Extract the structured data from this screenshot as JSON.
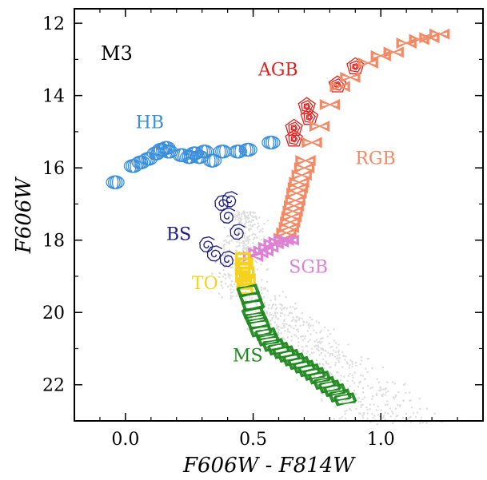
{
  "chart_data": {
    "type": "scatter",
    "title": "",
    "cluster_label": "M3",
    "xlabel": "F606W - F814W",
    "ylabel": "F606W",
    "xlim": [
      -0.2,
      1.4
    ],
    "ylim": [
      23.0,
      11.6
    ],
    "y_inverted": true,
    "grid": false,
    "xticks": [
      0.0,
      0.5,
      1.0
    ],
    "xtick_labels": [
      "0.0",
      "0.5",
      "1.0"
    ],
    "yticks": [
      12,
      14,
      16,
      18,
      20,
      22
    ],
    "ytick_labels": [
      "12",
      "14",
      "16",
      "18",
      "20",
      "22"
    ],
    "background_stars_color": "#dcdcdc",
    "series": [
      {
        "name": "HB",
        "color": "#3a8fdc",
        "marker": "ellipse-stack",
        "label_pos": [
          0.04,
          14.9
        ],
        "points": [
          [
            -0.04,
            16.4
          ],
          [
            0.03,
            15.95
          ],
          [
            0.06,
            15.85
          ],
          [
            0.09,
            15.75
          ],
          [
            0.12,
            15.6
          ],
          [
            0.14,
            15.5
          ],
          [
            0.16,
            15.45
          ],
          [
            0.17,
            15.55
          ],
          [
            0.22,
            15.65
          ],
          [
            0.25,
            15.7
          ],
          [
            0.27,
            15.6
          ],
          [
            0.29,
            15.7
          ],
          [
            0.31,
            15.55
          ],
          [
            0.34,
            15.8
          ],
          [
            0.38,
            15.55
          ],
          [
            0.44,
            15.55
          ],
          [
            0.48,
            15.5
          ],
          [
            0.57,
            15.3
          ]
        ]
      },
      {
        "name": "AGB",
        "color": "#e0201c",
        "marker": "pentagon-spiral",
        "label_pos": [
          0.52,
          13.45
        ],
        "points": [
          [
            0.66,
            14.9
          ],
          [
            0.66,
            15.2
          ],
          [
            0.71,
            14.3
          ],
          [
            0.72,
            14.6
          ],
          [
            0.83,
            13.7
          ],
          [
            0.9,
            13.2
          ]
        ]
      },
      {
        "name": "RGB",
        "color": "#f28a66",
        "marker": "bowtie",
        "label_pos": [
          0.9,
          15.9
        ],
        "points": [
          [
            0.62,
            17.95
          ],
          [
            0.63,
            17.8
          ],
          [
            0.64,
            17.65
          ],
          [
            0.645,
            17.5
          ],
          [
            0.65,
            17.35
          ],
          [
            0.655,
            17.2
          ],
          [
            0.66,
            17.05
          ],
          [
            0.665,
            16.9
          ],
          [
            0.67,
            16.7
          ],
          [
            0.675,
            16.55
          ],
          [
            0.68,
            16.4
          ],
          [
            0.69,
            16.2
          ],
          [
            0.7,
            16.0
          ],
          [
            0.705,
            15.8
          ],
          [
            0.73,
            15.3
          ],
          [
            0.76,
            14.85
          ],
          [
            0.8,
            14.25
          ],
          [
            0.84,
            13.75
          ],
          [
            0.88,
            13.5
          ],
          [
            0.95,
            13.1
          ],
          [
            1.0,
            12.9
          ],
          [
            1.05,
            12.8
          ],
          [
            1.1,
            12.55
          ],
          [
            1.15,
            12.45
          ],
          [
            1.19,
            12.4
          ],
          [
            1.23,
            12.3
          ]
        ]
      },
      {
        "name": "SGB",
        "color": "#de82d6",
        "marker": "bowtie",
        "label_pos": [
          0.64,
          18.9
        ],
        "points": [
          [
            0.5,
            18.45
          ],
          [
            0.52,
            18.35
          ],
          [
            0.54,
            18.3
          ],
          [
            0.56,
            18.2
          ],
          [
            0.58,
            18.1
          ],
          [
            0.6,
            18.05
          ],
          [
            0.62,
            18.0
          ],
          [
            0.64,
            18.0
          ]
        ]
      },
      {
        "name": "TO",
        "color": "#f5d21e",
        "marker": "square",
        "label_pos": [
          0.26,
          19.35
        ],
        "points": [
          [
            0.46,
            18.5
          ],
          [
            0.47,
            18.65
          ],
          [
            0.46,
            18.8
          ],
          [
            0.475,
            18.9
          ],
          [
            0.46,
            19.0
          ],
          [
            0.48,
            19.1
          ],
          [
            0.465,
            19.2
          ],
          [
            0.47,
            19.35
          ]
        ]
      },
      {
        "name": "BS",
        "color": "#1a1a80",
        "marker": "spiral",
        "label_pos": [
          0.16,
          18.0
        ],
        "points": [
          [
            0.38,
            17.0
          ],
          [
            0.41,
            16.9
          ],
          [
            0.4,
            17.35
          ],
          [
            0.44,
            17.8
          ],
          [
            0.32,
            18.15
          ],
          [
            0.35,
            18.4
          ],
          [
            0.4,
            18.55
          ]
        ]
      },
      {
        "name": "MS",
        "color": "#208a20",
        "marker": "parallelogram",
        "label_pos": [
          0.42,
          21.35
        ],
        "points": [
          [
            0.48,
            19.4
          ],
          [
            0.49,
            19.6
          ],
          [
            0.5,
            19.8
          ],
          [
            0.5,
            20.0
          ],
          [
            0.51,
            20.15
          ],
          [
            0.52,
            20.3
          ],
          [
            0.53,
            20.5
          ],
          [
            0.55,
            20.6
          ],
          [
            0.56,
            20.75
          ],
          [
            0.58,
            20.9
          ],
          [
            0.6,
            21.0
          ],
          [
            0.62,
            21.1
          ],
          [
            0.64,
            21.2
          ],
          [
            0.66,
            21.3
          ],
          [
            0.68,
            21.4
          ],
          [
            0.7,
            21.5
          ],
          [
            0.72,
            21.6
          ],
          [
            0.74,
            21.7
          ],
          [
            0.76,
            21.8
          ],
          [
            0.78,
            21.95
          ],
          [
            0.8,
            22.05
          ],
          [
            0.82,
            22.15
          ],
          [
            0.84,
            22.3
          ],
          [
            0.86,
            22.4
          ]
        ]
      }
    ]
  }
}
